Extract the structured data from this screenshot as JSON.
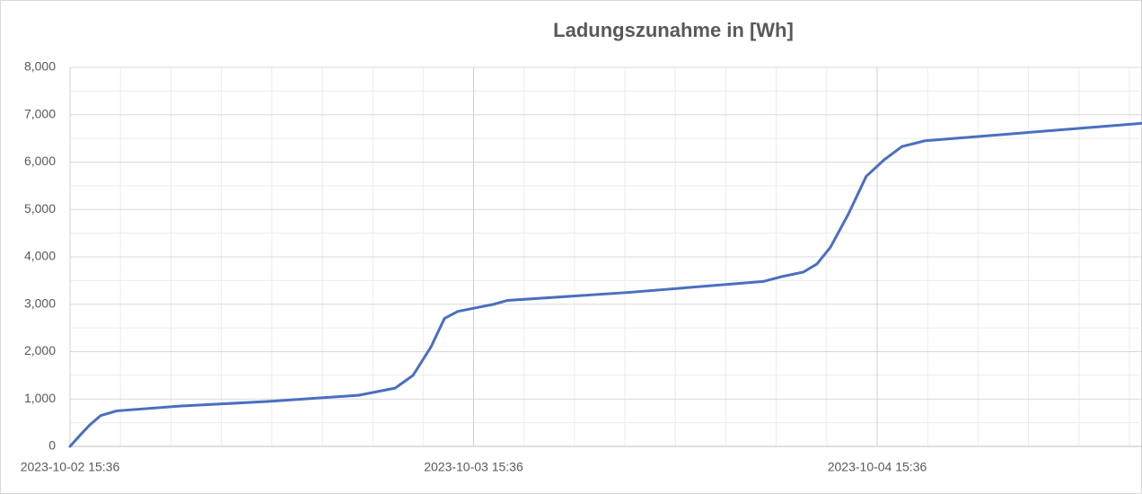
{
  "chart_data": {
    "type": "line",
    "title": "Ladungszunahme in [Wh]",
    "x": [
      "2023-10-02 15:36",
      "2023-10-02 16:14",
      "2023-10-02 16:46",
      "2023-10-02 17:25",
      "2023-10-02 18:23",
      "2023-10-02 22:07",
      "2023-10-03 03:27",
      "2023-10-03 08:47",
      "2023-10-03 10:56",
      "2023-10-03 12:00",
      "2023-10-03 13:04",
      "2023-10-03 13:52",
      "2023-10-03 14:40",
      "2023-10-03 16:48",
      "2023-10-03 17:36",
      "2023-10-04 00:49",
      "2023-10-04 08:49",
      "2023-10-04 09:53",
      "2023-10-04 11:13",
      "2023-10-04 12:01",
      "2023-10-04 12:49",
      "2023-10-04 13:53",
      "2023-10-04 14:57",
      "2023-10-04 16:01",
      "2023-10-04 17:05",
      "2023-10-04 18:26",
      "2023-10-05 07:21"
    ],
    "series": [
      {
        "name": "Ladungszunahme",
        "color": "#4a6fbf",
        "values": [
          0,
          250,
          450,
          650,
          750,
          850,
          950,
          1080,
          1230,
          1500,
          2100,
          2700,
          2850,
          3000,
          3080,
          3250,
          3480,
          3580,
          3680,
          3850,
          4200,
          4900,
          5700,
          6050,
          6330,
          6450,
          6820
        ]
      }
    ],
    "xlim": [
      "2023-10-02 15:36",
      "2023-10-05 07:21"
    ],
    "xticks": [
      "2023-10-02 15:36",
      "2023-10-03 15:36",
      "2023-10-04 15:36"
    ],
    "ylim": [
      0,
      8000
    ],
    "yticks": [
      {
        "value": 0,
        "label": "0"
      },
      {
        "value": 1000,
        "label": "1,000"
      },
      {
        "value": 2000,
        "label": "2,000"
      },
      {
        "value": 3000,
        "label": "3,000"
      },
      {
        "value": 4000,
        "label": "4,000"
      },
      {
        "value": 5000,
        "label": "5,000"
      },
      {
        "value": 6000,
        "label": "6,000"
      },
      {
        "value": 7000,
        "label": "7,000"
      },
      {
        "value": 8000,
        "label": "8,000"
      }
    ],
    "grid": true
  }
}
